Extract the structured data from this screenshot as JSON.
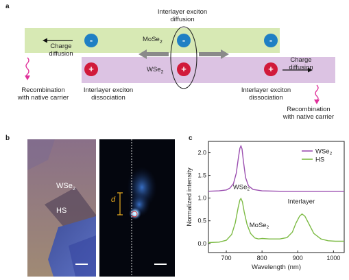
{
  "panel_a": {
    "letter": "a",
    "top_label_line1": "Interlayer exciton",
    "top_label_line2": "diffusion",
    "mose2_label_base": "MoSe",
    "mose2_label_sub": "2",
    "wse2_label_base": "WSe",
    "wse2_label_sub": "2",
    "charge_diffusion_left_1": "Charge",
    "charge_diffusion_left_2": "diffusion",
    "charge_diffusion_right_1": "Charge",
    "charge_diffusion_right_2": "diffusion",
    "recomb_left_1": "Recombination",
    "recomb_left_2": "with native carrier",
    "recomb_right_1": "Recombination",
    "recomb_right_2": "with native carrier",
    "dissoc_left_1": "Interlayer exciton",
    "dissoc_left_2": "dissociation",
    "dissoc_right_1": "Interlayer exciton",
    "dissoc_right_2": "dissociation",
    "electron_symbol": "-",
    "hole_symbol": "+",
    "colors": {
      "mose2_band": "#d7e9b4",
      "wse2_band": "#dcc3e3",
      "electron": "#1f7fc4",
      "hole": "#d11a3a",
      "wavy": "#e0309a"
    }
  },
  "panel_b": {
    "letter": "b",
    "wse2_base": "WSe",
    "wse2_sub": "2",
    "hs_label": "HS",
    "distance_label": "d"
  },
  "panel_c": {
    "letter": "c"
  },
  "chart_data": {
    "type": "line",
    "xlabel": "Wavelength (nm)",
    "ylabel": "Normalized intensity",
    "xlim": [
      650,
      1030
    ],
    "ylim": [
      -0.2,
      2.25
    ],
    "xticks": [
      700,
      800,
      900,
      1000
    ],
    "yticks": [
      0.0,
      0.5,
      1.0,
      1.5,
      2.0
    ],
    "legend_position": "top-right",
    "series": [
      {
        "name": "WSe2",
        "color": "#9b4fb0",
        "x": [
          650,
          680,
          700,
          710,
          720,
          728,
          734,
          738,
          741,
          744,
          748,
          754,
          762,
          775,
          800,
          850,
          900,
          950,
          1000,
          1030
        ],
        "y": [
          1.15,
          1.16,
          1.18,
          1.22,
          1.32,
          1.55,
          1.9,
          2.1,
          2.15,
          2.08,
          1.8,
          1.45,
          1.27,
          1.19,
          1.16,
          1.15,
          1.15,
          1.15,
          1.15,
          1.15
        ]
      },
      {
        "name": "HS",
        "color": "#7dbb45",
        "x": [
          650,
          680,
          700,
          715,
          725,
          733,
          738,
          741,
          745,
          750,
          758,
          768,
          780,
          790,
          800,
          820,
          850,
          870,
          885,
          895,
          905,
          912,
          920,
          930,
          945,
          965,
          985,
          1005,
          1030
        ],
        "y": [
          0.02,
          0.03,
          0.07,
          0.2,
          0.45,
          0.78,
          0.96,
          0.99,
          0.92,
          0.7,
          0.42,
          0.22,
          0.12,
          0.1,
          0.11,
          0.1,
          0.1,
          0.13,
          0.25,
          0.45,
          0.6,
          0.65,
          0.6,
          0.45,
          0.22,
          0.1,
          0.06,
          0.05,
          0.05
        ]
      }
    ],
    "annotations": [
      {
        "text_base": "WSe",
        "text_sub": "2",
        "x": 742,
        "y": 1.2
      },
      {
        "text_base": "MoSe",
        "text_sub": "2",
        "x": 792,
        "y": 0.36
      },
      {
        "text": "Interlayer",
        "x": 910,
        "y": 0.88
      }
    ]
  }
}
